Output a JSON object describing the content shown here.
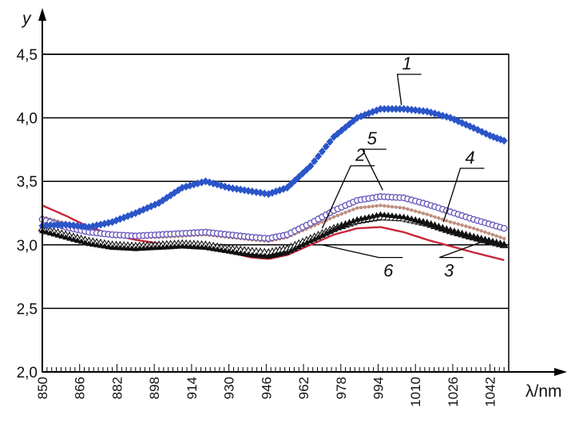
{
  "chart_data": {
    "type": "line",
    "ylabel": "y",
    "xlabel": "λ/nm",
    "xlim": [
      850,
      1050
    ],
    "ylim": [
      2.0,
      4.5
    ],
    "y_ticks": [
      "2,0",
      "2,5",
      "3,0",
      "3,5",
      "4,0",
      "4,5"
    ],
    "x_ticks": [
      "850",
      "866",
      "882",
      "898",
      "914",
      "930",
      "946",
      "962",
      "978",
      "994",
      "1010",
      "1026",
      "1042"
    ],
    "grid": "horizontal",
    "legend": "callouts",
    "series": [
      {
        "name": "1",
        "color": "#2a55c8",
        "marker": "diamond",
        "x": [
          850,
          860,
          870,
          880,
          890,
          900,
          910,
          920,
          930,
          940,
          947,
          955,
          965,
          975,
          985,
          995,
          1005,
          1015,
          1025,
          1035,
          1042,
          1048
        ],
        "y": [
          3.15,
          3.16,
          3.14,
          3.18,
          3.25,
          3.33,
          3.45,
          3.5,
          3.45,
          3.42,
          3.4,
          3.45,
          3.62,
          3.85,
          4.0,
          4.07,
          4.07,
          4.05,
          4.0,
          3.92,
          3.86,
          3.82
        ]
      },
      {
        "name": "2",
        "color": "#c09080",
        "marker": "dot",
        "x": [
          850,
          860,
          870,
          880,
          890,
          900,
          910,
          920,
          930,
          940,
          947,
          955,
          965,
          975,
          985,
          995,
          1005,
          1015,
          1025,
          1035,
          1048
        ],
        "y": [
          3.22,
          3.17,
          3.12,
          3.08,
          3.06,
          3.06,
          3.07,
          3.08,
          3.06,
          3.04,
          3.03,
          3.06,
          3.14,
          3.22,
          3.29,
          3.31,
          3.29,
          3.24,
          3.18,
          3.13,
          3.05
        ]
      },
      {
        "name": "3",
        "color": "#111111",
        "marker": "open-triangle",
        "x": [
          850,
          860,
          870,
          880,
          890,
          900,
          910,
          920,
          930,
          940,
          947,
          955,
          965,
          975,
          985,
          995,
          1005,
          1015,
          1025,
          1035,
          1048
        ],
        "y": [
          3.13,
          3.08,
          3.03,
          3.0,
          2.99,
          3.0,
          3.01,
          3.0,
          2.97,
          2.95,
          2.94,
          2.97,
          3.05,
          3.13,
          3.19,
          3.22,
          3.21,
          3.17,
          3.11,
          3.06,
          3.0
        ]
      },
      {
        "name": "4",
        "color": "#111111",
        "marker": "triangle",
        "x": [
          850,
          860,
          870,
          880,
          890,
          900,
          910,
          920,
          930,
          940,
          947,
          955,
          965,
          975,
          985,
          995,
          1005,
          1015,
          1025,
          1035,
          1048
        ],
        "y": [
          3.11,
          3.06,
          3.01,
          2.98,
          2.97,
          2.98,
          2.99,
          2.98,
          2.95,
          2.92,
          2.91,
          2.94,
          3.03,
          3.12,
          3.2,
          3.24,
          3.22,
          3.17,
          3.11,
          3.06,
          3.0
        ]
      },
      {
        "name": "5",
        "color": "#6655bb",
        "marker": "open-circle",
        "x": [
          850,
          860,
          870,
          880,
          890,
          900,
          910,
          920,
          930,
          940,
          947,
          955,
          965,
          975,
          985,
          995,
          1005,
          1015,
          1025,
          1035,
          1048
        ],
        "y": [
          3.2,
          3.14,
          3.1,
          3.08,
          3.07,
          3.08,
          3.09,
          3.1,
          3.08,
          3.06,
          3.05,
          3.08,
          3.17,
          3.27,
          3.35,
          3.38,
          3.37,
          3.32,
          3.26,
          3.2,
          3.13
        ]
      },
      {
        "name": "6",
        "color": "#c8283a",
        "marker": "line",
        "x": [
          850,
          860,
          870,
          880,
          890,
          900,
          910,
          920,
          930,
          940,
          947,
          955,
          965,
          975,
          985,
          995,
          1005,
          1015,
          1025,
          1035,
          1048
        ],
        "y": [
          3.31,
          3.23,
          3.14,
          3.08,
          3.04,
          3.01,
          3.0,
          2.98,
          2.94,
          2.9,
          2.89,
          2.92,
          3.0,
          3.08,
          3.13,
          3.14,
          3.1,
          3.04,
          2.99,
          2.94,
          2.88
        ]
      }
    ],
    "callouts": [
      {
        "label": "1",
        "lx": 1005,
        "ly": 4.38,
        "tx": 1004,
        "ty": 4.1
      },
      {
        "label": "2",
        "lx": 985,
        "ly": 3.66,
        "tx": 970,
        "ty": 3.13
      },
      {
        "label": "5",
        "lx": 990,
        "ly": 3.79,
        "tx": 996,
        "ty": 3.43
      },
      {
        "label": "4",
        "lx": 1032,
        "ly": 3.64,
        "tx": 1022,
        "ty": 3.18
      },
      {
        "label": "6",
        "lx": 997,
        "ly": 2.75,
        "tx": 970,
        "ty": 3.0
      },
      {
        "label": "3",
        "lx": 1023,
        "ly": 2.75,
        "tx": 1038,
        "ty": 3.02
      }
    ]
  }
}
